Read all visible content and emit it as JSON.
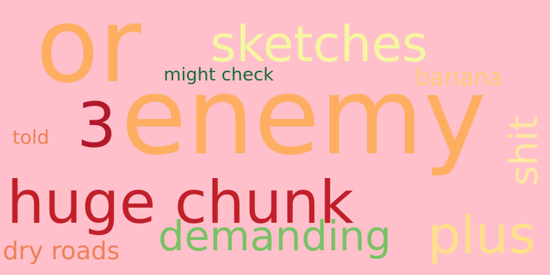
{
  "background": "#ffc0cb",
  "words": {
    "or": {
      "text": "or",
      "color": "#fdae61"
    },
    "enemy": {
      "text": "enemy",
      "color": "#fdae61"
    },
    "sketches": {
      "text": "sketches",
      "color": "#f5f7a0"
    },
    "three": {
      "text": "3",
      "color": "#b2182b"
    },
    "might": {
      "text": "might check",
      "color": "#1a6b3a"
    },
    "banana": {
      "text": "banana",
      "color": "#fdc97a"
    },
    "told": {
      "text": "told",
      "color": "#ee7f55"
    },
    "huge": {
      "text": "huge chunk",
      "color": "#c1202a"
    },
    "plus": {
      "text": "plus",
      "color": "#fee08b"
    },
    "demanding": {
      "text": "demanding",
      "color": "#78c265"
    },
    "dry": {
      "text": "dry roads",
      "color": "#ee7f55"
    },
    "shit": {
      "text": "shit",
      "color": "#fee8a0"
    }
  }
}
